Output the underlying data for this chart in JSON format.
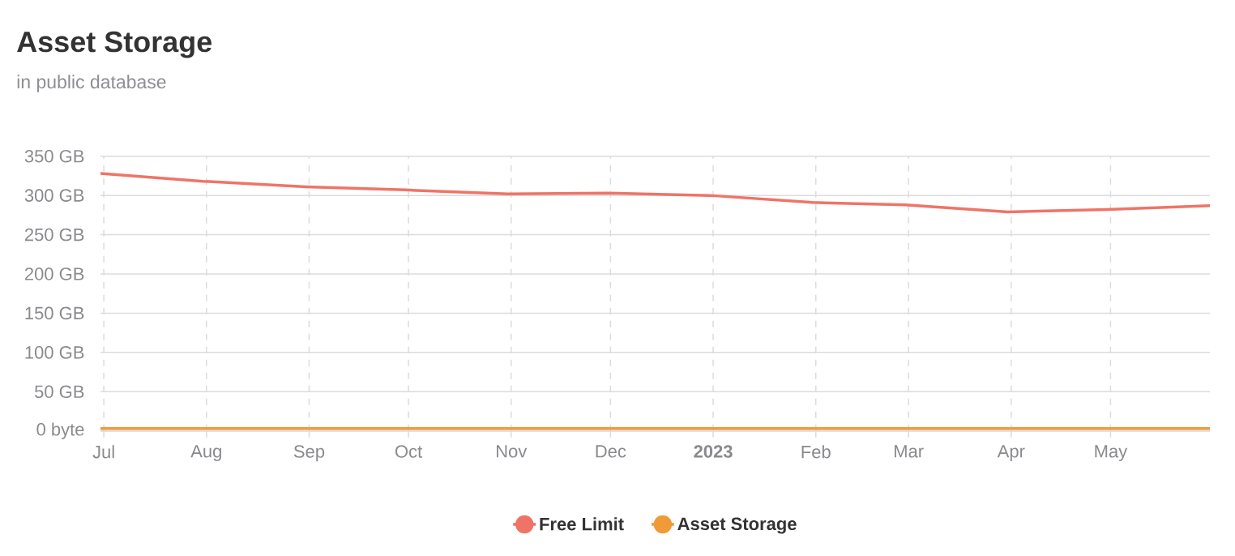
{
  "chart_data": {
    "type": "line",
    "title": "Asset Storage",
    "subtitle": "in public database",
    "x": [
      "2022-06-30",
      "2022-07-31",
      "2022-08-31",
      "2022-09-30",
      "2022-10-31",
      "2022-11-30",
      "2022-12-31",
      "2023-01-31",
      "2023-02-28",
      "2023-03-31",
      "2023-04-30",
      "2023-05-31"
    ],
    "series": [
      {
        "name": "Free Limit",
        "color": "#ef7467",
        "values": [
          328,
          318,
          311,
          307,
          302,
          303,
          300,
          291,
          288,
          279,
          282,
          287
        ]
      },
      {
        "name": "Asset Storage",
        "color": "#f09a38",
        "values": [
          3,
          3,
          3,
          3,
          3,
          3,
          3,
          3,
          3,
          3,
          3,
          3
        ]
      }
    ],
    "xlim": [
      "2022-06-30",
      "2023-05-31"
    ],
    "xticks": [
      {
        "value": "2022-07-01",
        "label": "Jul"
      },
      {
        "value": "2022-08-01",
        "label": "Aug"
      },
      {
        "value": "2022-09-01",
        "label": "Sep"
      },
      {
        "value": "2022-10-01",
        "label": "Oct"
      },
      {
        "value": "2022-11-01",
        "label": "Nov"
      },
      {
        "value": "2022-12-01",
        "label": "Dec"
      },
      {
        "value": "2023-01-01",
        "label": "**2023**"
      },
      {
        "value": "2023-02-01",
        "label": "Feb"
      },
      {
        "value": "2023-03-01",
        "label": "Mar"
      },
      {
        "value": "2023-04-01",
        "label": "Apr"
      },
      {
        "value": "2023-05-01",
        "label": "May"
      }
    ],
    "ylim": [
      0,
      350
    ],
    "yticks": [
      {
        "value": 0,
        "label": "0 byte"
      },
      {
        "value": 50,
        "label": "50 GB"
      },
      {
        "value": 100,
        "label": "100 GB"
      },
      {
        "value": 150,
        "label": "150 GB"
      },
      {
        "value": 200,
        "label": "200 GB"
      },
      {
        "value": 250,
        "label": "250 GB"
      },
      {
        "value": 300,
        "label": "300 GB"
      },
      {
        "value": 350,
        "label": "350 GB"
      }
    ],
    "grid": true,
    "legend": "bottom"
  }
}
